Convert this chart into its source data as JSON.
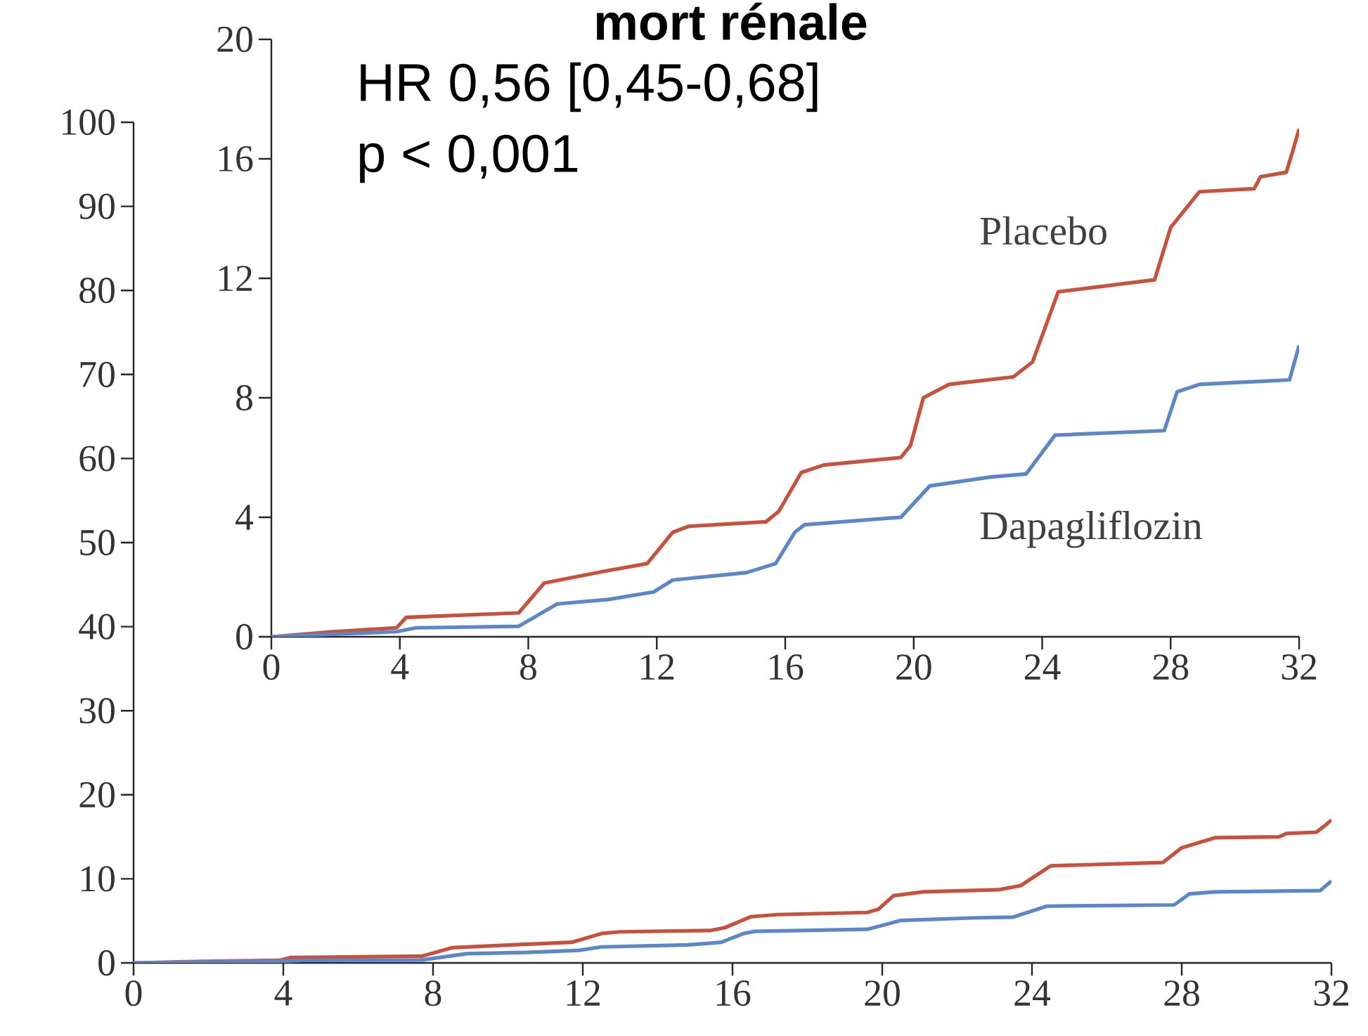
{
  "chart_data": [
    {
      "type": "line",
      "title": "mort rénale",
      "annotations": [
        "HR 0,56 [0,45-0,68]",
        "p < 0,001"
      ],
      "xlim": [
        0,
        32
      ],
      "xticks": [
        0,
        4,
        8,
        12,
        16,
        20,
        24,
        28,
        32
      ],
      "ylim": [
        0,
        20
      ],
      "yticks": [
        0,
        4,
        8,
        12,
        16,
        20
      ],
      "series": [
        {
          "name": "Placebo",
          "color": "#c8513e",
          "x": [
            0,
            1.9,
            3.9,
            4.2,
            7.7,
            8.5,
            10.4,
            11.7,
            12.5,
            13,
            15.4,
            15.8,
            16.5,
            17.2,
            19.6,
            19.9,
            20.3,
            21.1,
            23.1,
            23.7,
            24.5,
            27.5,
            28,
            28.9,
            30.6,
            30.8,
            31.6,
            31.8,
            32
          ],
          "values": [
            0,
            0.17,
            0.3,
            0.65,
            0.8,
            1.8,
            2.2,
            2.45,
            3.5,
            3.7,
            3.85,
            4.2,
            5.5,
            5.75,
            6.0,
            6.4,
            8.0,
            8.45,
            8.7,
            9.2,
            11.55,
            11.95,
            13.7,
            14.9,
            15.0,
            15.4,
            15.55,
            16.25,
            17.0
          ]
        },
        {
          "name": "Dapagliflozin",
          "color": "#5b87c9",
          "x": [
            0,
            3.9,
            4.5,
            7.7,
            8.9,
            10.5,
            11.9,
            12.5,
            14.8,
            15.7,
            16.3,
            16.6,
            19.6,
            20.5,
            22.4,
            23.5,
            24.4,
            27.8,
            28.2,
            28.9,
            31.7,
            32
          ],
          "values": [
            0,
            0.17,
            0.3,
            0.35,
            1.1,
            1.25,
            1.5,
            1.9,
            2.15,
            2.45,
            3.5,
            3.75,
            4.0,
            5.05,
            5.35,
            5.45,
            6.75,
            6.9,
            8.2,
            8.45,
            8.6,
            9.75
          ]
        }
      ]
    },
    {
      "type": "line",
      "xlim": [
        0,
        32
      ],
      "xticks": [
        0,
        4,
        8,
        12,
        16,
        20,
        24,
        28,
        32
      ],
      "ylim": [
        0,
        100
      ],
      "yticks": [
        0,
        10,
        20,
        30,
        40,
        50,
        60,
        70,
        80,
        90,
        100
      ],
      "series": [
        {
          "color": "#c8513e",
          "x": [
            0,
            1.9,
            3.9,
            4.2,
            7.7,
            8.5,
            10.4,
            11.7,
            12.5,
            13,
            15.4,
            15.8,
            16.5,
            17.2,
            19.6,
            19.9,
            20.3,
            21.1,
            23.1,
            23.7,
            24.5,
            27.5,
            28,
            28.9,
            30.6,
            30.8,
            31.6,
            31.8,
            32
          ],
          "values": [
            0,
            0.17,
            0.3,
            0.65,
            0.8,
            1.8,
            2.2,
            2.45,
            3.5,
            3.7,
            3.85,
            4.2,
            5.5,
            5.75,
            6.0,
            6.4,
            8.0,
            8.45,
            8.7,
            9.2,
            11.55,
            11.95,
            13.7,
            14.9,
            15.0,
            15.4,
            15.55,
            16.25,
            17.0
          ]
        },
        {
          "color": "#5b87c9",
          "x": [
            0,
            3.9,
            4.5,
            7.7,
            8.9,
            10.5,
            11.9,
            12.5,
            14.8,
            15.7,
            16.3,
            16.6,
            19.6,
            20.5,
            22.4,
            23.5,
            24.4,
            27.8,
            28.2,
            28.9,
            31.7,
            32
          ],
          "values": [
            0,
            0.17,
            0.3,
            0.35,
            1.1,
            1.25,
            1.5,
            1.9,
            2.15,
            2.45,
            3.5,
            3.75,
            4.0,
            5.05,
            5.35,
            5.45,
            6.75,
            6.9,
            8.2,
            8.45,
            8.6,
            9.75
          ]
        }
      ]
    }
  ]
}
